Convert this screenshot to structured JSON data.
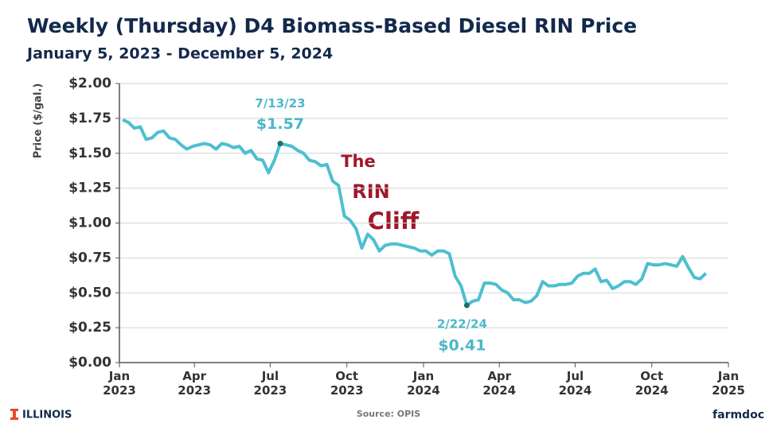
{
  "chart_data": {
    "type": "line",
    "title": "Weekly (Thursday) D4 Biomass-Based Diesel RIN Price",
    "subtitle": "January 5, 2023 - December 5, 2024",
    "y_label": "Price ($/gal.)",
    "x": [
      "2023-01-05",
      "2023-01-12",
      "2023-01-19",
      "2023-01-26",
      "2023-02-02",
      "2023-02-09",
      "2023-02-16",
      "2023-02-23",
      "2023-03-02",
      "2023-03-09",
      "2023-03-16",
      "2023-03-23",
      "2023-03-30",
      "2023-04-06",
      "2023-04-13",
      "2023-04-20",
      "2023-04-27",
      "2023-05-04",
      "2023-05-11",
      "2023-05-18",
      "2023-05-25",
      "2023-06-01",
      "2023-06-08",
      "2023-06-15",
      "2023-06-22",
      "2023-06-29",
      "2023-07-06",
      "2023-07-13",
      "2023-07-20",
      "2023-07-27",
      "2023-08-03",
      "2023-08-10",
      "2023-08-17",
      "2023-08-24",
      "2023-08-31",
      "2023-09-07",
      "2023-09-14",
      "2023-09-21",
      "2023-09-28",
      "2023-10-05",
      "2023-10-12",
      "2023-10-19",
      "2023-10-26",
      "2023-11-02",
      "2023-11-09",
      "2023-11-16",
      "2023-11-23",
      "2023-11-30",
      "2023-12-07",
      "2023-12-14",
      "2023-12-21",
      "2023-12-28",
      "2024-01-04",
      "2024-01-11",
      "2024-01-18",
      "2024-01-25",
      "2024-02-01",
      "2024-02-08",
      "2024-02-15",
      "2024-02-22",
      "2024-02-29",
      "2024-03-07",
      "2024-03-14",
      "2024-03-21",
      "2024-03-28",
      "2024-04-04",
      "2024-04-11",
      "2024-04-18",
      "2024-04-25",
      "2024-05-02",
      "2024-05-09",
      "2024-05-16",
      "2024-05-23",
      "2024-05-30",
      "2024-06-06",
      "2024-06-13",
      "2024-06-20",
      "2024-06-27",
      "2024-07-04",
      "2024-07-11",
      "2024-07-18",
      "2024-07-25",
      "2024-08-01",
      "2024-08-08",
      "2024-08-15",
      "2024-08-22",
      "2024-08-29",
      "2024-09-05",
      "2024-09-12",
      "2024-09-19",
      "2024-09-26",
      "2024-10-03",
      "2024-10-10",
      "2024-10-17",
      "2024-10-24",
      "2024-10-31",
      "2024-11-07",
      "2024-11-14",
      "2024-11-21",
      "2024-11-28",
      "2024-12-05"
    ],
    "series": [
      {
        "color": "#4dbfd0",
        "values": [
          1.74,
          1.72,
          1.68,
          1.69,
          1.6,
          1.61,
          1.65,
          1.66,
          1.61,
          1.6,
          1.56,
          1.53,
          1.55,
          1.56,
          1.57,
          1.56,
          1.53,
          1.57,
          1.56,
          1.54,
          1.55,
          1.5,
          1.52,
          1.46,
          1.45,
          1.36,
          1.45,
          1.57,
          1.56,
          1.55,
          1.52,
          1.5,
          1.45,
          1.44,
          1.41,
          1.42,
          1.3,
          1.27,
          1.05,
          1.02,
          0.96,
          0.82,
          0.92,
          0.88,
          0.8,
          0.84,
          0.85,
          0.85,
          0.84,
          0.83,
          0.82,
          0.8,
          0.8,
          0.77,
          0.8,
          0.8,
          0.78,
          0.62,
          0.55,
          0.41,
          0.44,
          0.45,
          0.57,
          0.57,
          0.56,
          0.52,
          0.5,
          0.45,
          0.45,
          0.43,
          0.44,
          0.48,
          0.58,
          0.55,
          0.55,
          0.56,
          0.56,
          0.57,
          0.62,
          0.64,
          0.64,
          0.67,
          0.58,
          0.59,
          0.53,
          0.55,
          0.58,
          0.58,
          0.56,
          0.6,
          0.71,
          0.7,
          0.7,
          0.71,
          0.7,
          0.69,
          0.76,
          0.68,
          0.61,
          0.6,
          0.64
        ]
      }
    ],
    "highlights": [
      {
        "x": "2023-07-13",
        "date_label": "7/13/23",
        "value": 1.57,
        "value_label": "$1.57"
      },
      {
        "x": "2024-02-22",
        "date_label": "2/22/24",
        "value": 0.41,
        "value_label": "$0.41"
      }
    ],
    "annotations": [
      "The",
      "RIN",
      "Cliff"
    ],
    "xlim": [
      "2023-01-01",
      "2025-01-01"
    ],
    "xticks": [
      {
        "value": "2023-01-01",
        "label": "Jan 2023"
      },
      {
        "value": "2023-04-01",
        "label": "Apr 2023"
      },
      {
        "value": "2023-07-01",
        "label": "Jul 2023"
      },
      {
        "value": "2023-10-01",
        "label": "Oct 2023"
      },
      {
        "value": "2024-01-01",
        "label": "Jan 2024"
      },
      {
        "value": "2024-04-01",
        "label": "Apr 2024"
      },
      {
        "value": "2024-07-01",
        "label": "Jul 2024"
      },
      {
        "value": "2024-10-01",
        "label": "Oct 2024"
      },
      {
        "value": "2025-01-01",
        "label": "Jan 2025"
      }
    ],
    "ylim": [
      0,
      2
    ],
    "yticks": [
      {
        "value": 0,
        "label": "$0.00"
      },
      {
        "value": 0.25,
        "label": "$0.25"
      },
      {
        "value": 0.5,
        "label": "$0.50"
      },
      {
        "value": 0.75,
        "label": "$0.75"
      },
      {
        "value": 1,
        "label": "$1.00"
      },
      {
        "value": 1.25,
        "label": "$1.25"
      },
      {
        "value": 1.5,
        "label": "$1.50"
      },
      {
        "value": 1.75,
        "label": "$1.75"
      },
      {
        "value": 2,
        "label": "$2.00"
      }
    ],
    "grid": true,
    "source": "Source: OPIS",
    "logo_left": "ILLINOIS",
    "logo_right": "farmdoc"
  }
}
